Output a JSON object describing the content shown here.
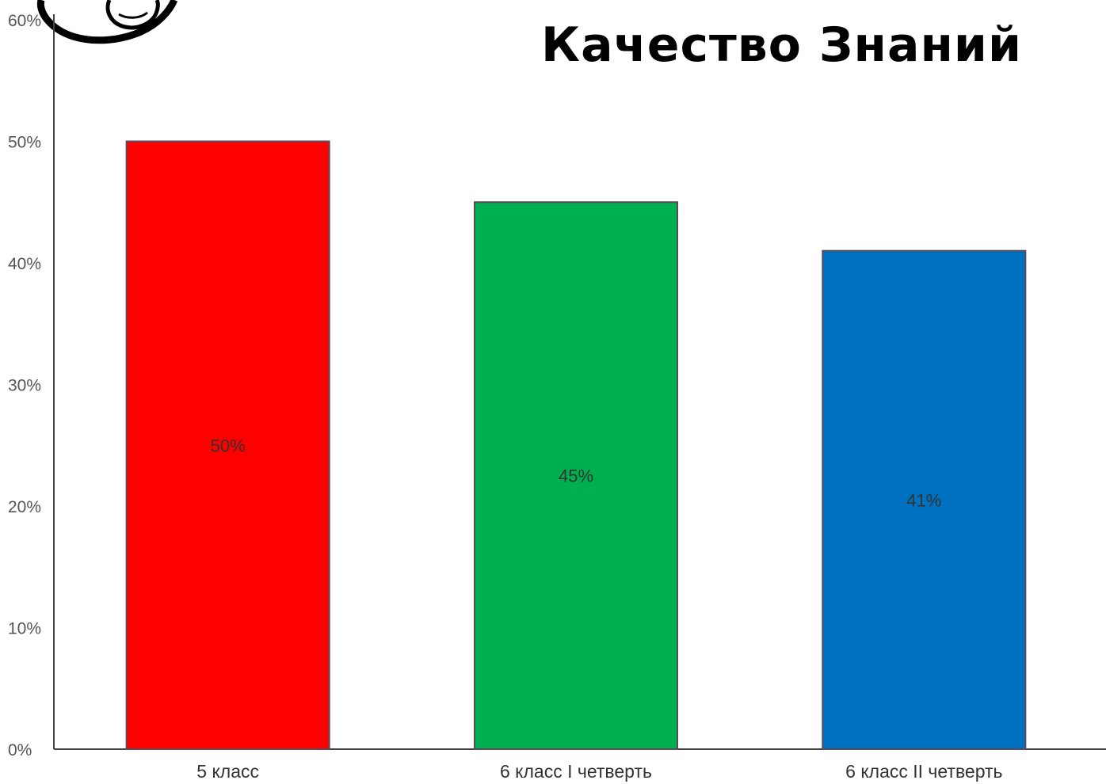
{
  "chart_data": {
    "type": "bar",
    "title": "Качество Знаний",
    "categories": [
      "5 класс",
      "6 класс I четверть",
      "6 класс II четверть"
    ],
    "values": [
      50,
      45,
      41
    ],
    "data_labels": [
      "50%",
      "45%",
      "41%"
    ],
    "bar_colors": [
      "#ff0000",
      "#00b050",
      "#0070c0"
    ],
    "ylim": [
      0,
      60
    ],
    "yticks": [
      "0%",
      "10%",
      "20%",
      "30%",
      "40%",
      "50%",
      "60%"
    ],
    "grid": false,
    "xlabel": "",
    "ylabel": ""
  },
  "decoration": {
    "logo_icon": "cartoon-hand-logo-icon"
  }
}
